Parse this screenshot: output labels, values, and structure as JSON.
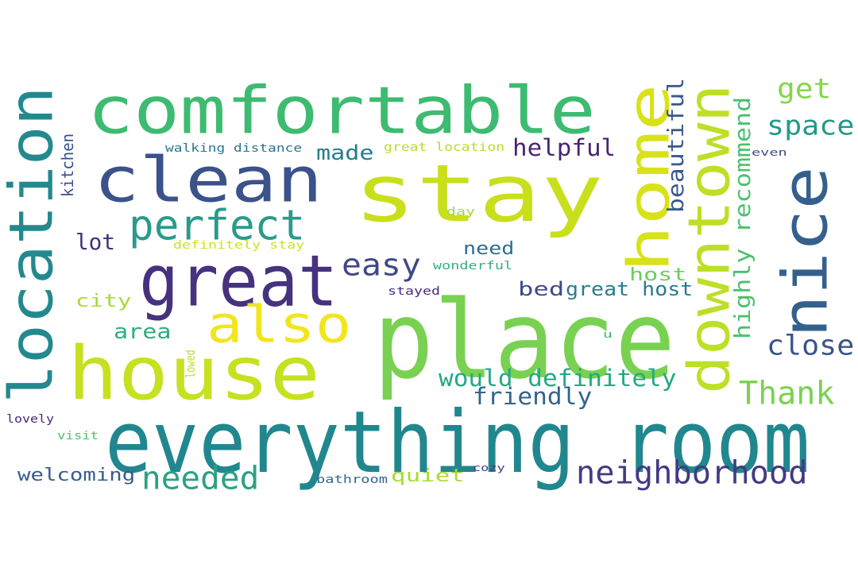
{
  "words": [
    {
      "text": "stay",
      "color": "#c9df1c"
    },
    {
      "text": "place",
      "color": "#79d151"
    },
    {
      "text": "comfortable",
      "color": "#3dbb71"
    },
    {
      "text": "clean",
      "color": "#3b528b"
    },
    {
      "text": "everything room",
      "color": "#21878e"
    },
    {
      "text": "house",
      "color": "#c7e020"
    },
    {
      "text": "location",
      "color": "#23898e"
    },
    {
      "text": "great",
      "color": "#46327e"
    },
    {
      "text": "nice",
      "color": "#34608d"
    },
    {
      "text": "home",
      "color": "#d8e219"
    },
    {
      "text": "also",
      "color": "#f1e51d"
    },
    {
      "text": "downtown",
      "color": "#bddf26"
    },
    {
      "text": "perfect",
      "color": "#2a9a8a"
    },
    {
      "text": "neighborhood",
      "color": "#443a83"
    },
    {
      "text": "needed",
      "color": "#2ca183"
    },
    {
      "text": "Thank",
      "color": "#7ad151"
    },
    {
      "text": "close",
      "color": "#3a548c"
    },
    {
      "text": "easy",
      "color": "#3f4788"
    },
    {
      "text": "would definitely",
      "color": "#22a884"
    },
    {
      "text": "friendly",
      "color": "#33638d"
    },
    {
      "text": "space",
      "color": "#1f998a"
    },
    {
      "text": "get",
      "color": "#86d549"
    },
    {
      "text": "helpful",
      "color": "#482475"
    },
    {
      "text": "beautiful",
      "color": "#38598c"
    },
    {
      "text": "highly recommend",
      "color": "#4ac16d"
    },
    {
      "text": "made",
      "color": "#287d8e"
    },
    {
      "text": "lot",
      "color": "#472f7d"
    },
    {
      "text": "city",
      "color": "#a5db36"
    },
    {
      "text": "area",
      "color": "#29af7f"
    },
    {
      "text": "need",
      "color": "#2e6e8e"
    },
    {
      "text": "host",
      "color": "#6ccd5a"
    },
    {
      "text": "bed",
      "color": "#3e4a89"
    },
    {
      "text": "great host",
      "color": "#287c8e"
    },
    {
      "text": "quiet",
      "color": "#a8db34"
    },
    {
      "text": "welcoming",
      "color": "#365d8d"
    },
    {
      "text": "walking distance",
      "color": "#2b748e"
    },
    {
      "text": "great location",
      "color": "#b8de29"
    },
    {
      "text": "definitely stay",
      "color": "#d0e11c"
    },
    {
      "text": "wonderful",
      "color": "#2eb37c"
    },
    {
      "text": "stayed",
      "color": "#46307e"
    },
    {
      "text": "day",
      "color": "#a2da37"
    },
    {
      "text": "kitchen",
      "color": "#3b518b"
    },
    {
      "text": "even",
      "color": "#3e4989"
    },
    {
      "text": "lovely",
      "color": "#482979"
    },
    {
      "text": "visit",
      "color": "#4ec36b"
    },
    {
      "text": "lowed",
      "color": "#bade28"
    },
    {
      "text": "u",
      "color": "#35b779"
    },
    {
      "text": "cozy",
      "color": "#443b84"
    },
    {
      "text": "bathroom",
      "color": "#31688e"
    }
  ]
}
